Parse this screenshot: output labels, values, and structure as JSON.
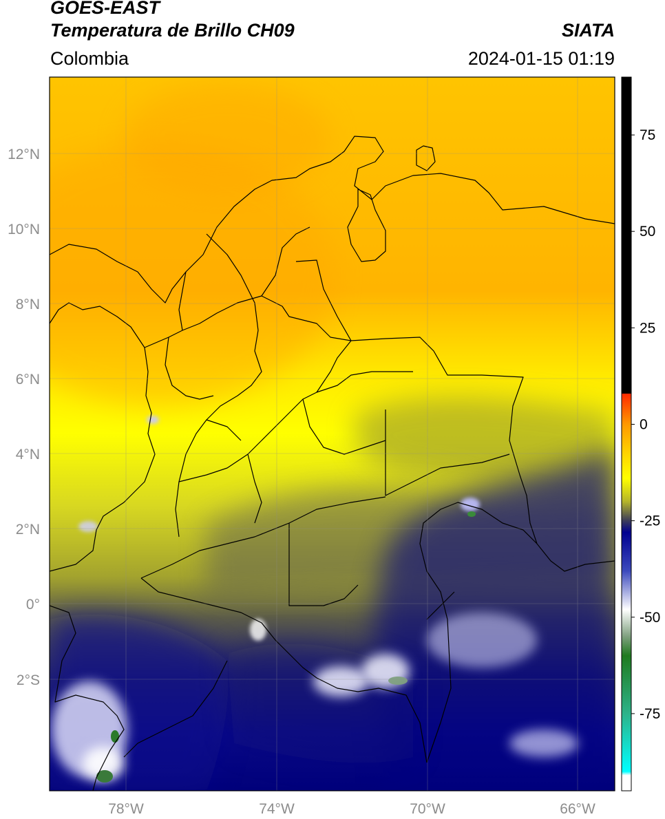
{
  "header": {
    "satellite": "GOES-EAST",
    "product": "Temperatura de Brillo CH09",
    "organization": "SIATA",
    "region": "Colombia",
    "timestamp": "2024-01-15 01:19"
  },
  "map": {
    "lat_labels": [
      "12°N",
      "10°N",
      "8°N",
      "6°N",
      "4°N",
      "2°N",
      "0°",
      "2°S"
    ],
    "lon_labels": [
      "78°W",
      "74°W",
      "70°W",
      "66°W"
    ],
    "lat_values": [
      12,
      10,
      8,
      6,
      4,
      2,
      0,
      -2
    ],
    "lon_values": [
      -78,
      -74,
      -70,
      -66
    ],
    "extent": {
      "lon_min": -79.8,
      "lon_max": -64.9,
      "lat_min": -5.1,
      "lat_max": 14.0
    }
  },
  "colorbar": {
    "ticks": [
      "75",
      "50",
      "25",
      "0",
      "-25",
      "-50",
      "-75"
    ],
    "tick_values": [
      75,
      50,
      25,
      0,
      -25,
      -50,
      -75
    ],
    "range": [
      -95,
      90
    ],
    "stops": [
      {
        "value": 90,
        "color": "#000000"
      },
      {
        "value": 8,
        "color": "#000000"
      },
      {
        "value": 7.9,
        "color": "#ff2a00"
      },
      {
        "value": 0,
        "color": "#ff9900"
      },
      {
        "value": -8,
        "color": "#ffd700"
      },
      {
        "value": -14,
        "color": "#ffff00"
      },
      {
        "value": -20,
        "color": "#b5b52a"
      },
      {
        "value": -25,
        "color": "#3c3c5a"
      },
      {
        "value": -28,
        "color": "#000090"
      },
      {
        "value": -38,
        "color": "#3c4abd"
      },
      {
        "value": -48,
        "color": "#ffffff"
      },
      {
        "value": -55,
        "color": "#7fa07f"
      },
      {
        "value": -60,
        "color": "#1f7a1f"
      },
      {
        "value": -75,
        "color": "#2db38a"
      },
      {
        "value": -90,
        "color": "#00ffff"
      },
      {
        "value": -91,
        "color": "#ffffff"
      },
      {
        "value": -95,
        "color": "#ffffff"
      }
    ]
  }
}
